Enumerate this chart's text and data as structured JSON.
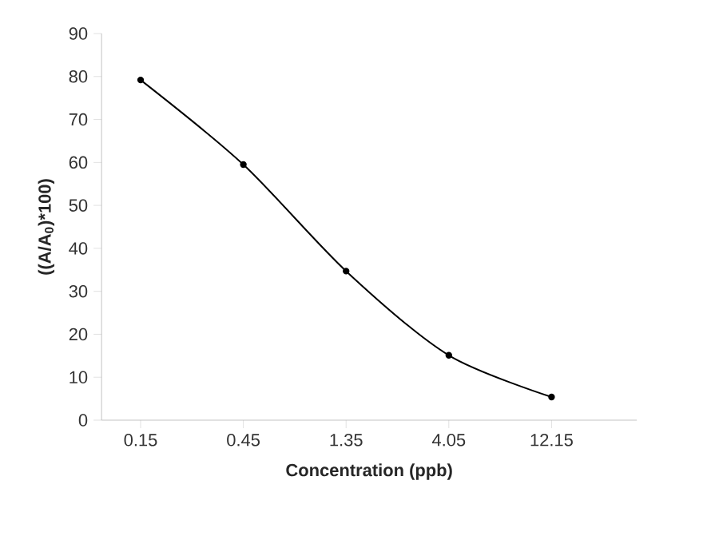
{
  "chart_data": {
    "type": "line",
    "xlabel": "Concentration (ppb)",
    "ylabel": "((A/A$_{0}$)*100)",
    "categories": [
      "0.15",
      "0.45",
      "1.35",
      "4.05",
      "12.15"
    ],
    "values": [
      79.2,
      59.5,
      34.7,
      15.1,
      5.4
    ],
    "color": "#000000",
    "marker": "circle",
    "line_style": "solid",
    "ylim": [
      0,
      90
    ],
    "yticks": [
      0,
      10,
      20,
      30,
      40,
      50,
      60,
      70,
      80,
      90
    ]
  }
}
